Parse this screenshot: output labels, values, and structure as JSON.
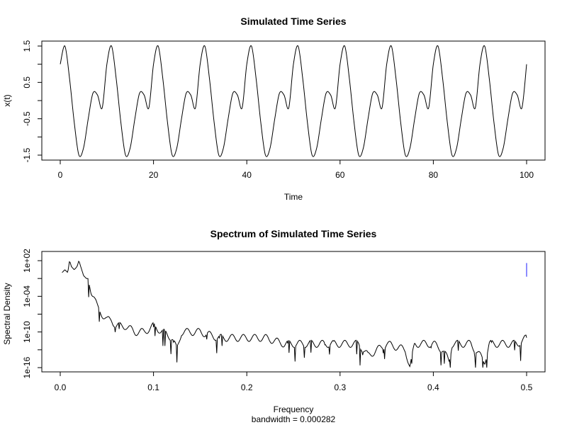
{
  "chart_data": [
    {
      "type": "line",
      "title": "Simulated Time Series",
      "xlabel": "Time",
      "ylabel": "x(t)",
      "xlim": [
        0,
        100
      ],
      "ylim": [
        -1.5,
        1.5
      ],
      "x_ticks": [
        0,
        20,
        40,
        60,
        80,
        100
      ],
      "x_tick_labels": [
        "0",
        "20",
        "40",
        "60",
        "80",
        "100"
      ],
      "y_ticks": [
        1.5,
        0.5,
        -0.5,
        -1.5
      ],
      "y_tick_labels": [
        "1.5",
        "0.5",
        "-0.5",
        "-1.5"
      ],
      "y_minor_ticks": [
        1.0,
        0.0,
        -1.0
      ],
      "series": [
        {
          "period": 10,
          "x": [
            0,
            1,
            2,
            3,
            4,
            5,
            6,
            7,
            8,
            9,
            10,
            11,
            12,
            13,
            14,
            15,
            16,
            17,
            18,
            19,
            20,
            21,
            22,
            23,
            24,
            25,
            26,
            27,
            28,
            29,
            30,
            31,
            32,
            33,
            34,
            35,
            36,
            37,
            38,
            39,
            40,
            41,
            42,
            43,
            44,
            45,
            46,
            47,
            48,
            49,
            50,
            51,
            52,
            53,
            54,
            55,
            56,
            57,
            58,
            59,
            60,
            61,
            62,
            63,
            64,
            65,
            66,
            67,
            68,
            69,
            70,
            71,
            72,
            73,
            74,
            75,
            76,
            77,
            78,
            79,
            80,
            81,
            82,
            83,
            84,
            85,
            86,
            87,
            88,
            89,
            90,
            91,
            92,
            93,
            94,
            95,
            96,
            97,
            98,
            99,
            100
          ],
          "y": [
            1.0,
            1.5,
            0.6,
            -0.6,
            -1.5,
            -1.3,
            -0.5,
            0.2,
            0.15,
            -0.2,
            1.0,
            1.5,
            0.6,
            -0.6,
            -1.5,
            -1.3,
            -0.5,
            0.2,
            0.15,
            -0.2,
            1.0,
            1.5,
            0.6,
            -0.6,
            -1.5,
            -1.3,
            -0.5,
            0.2,
            0.15,
            -0.2,
            1.0,
            1.5,
            0.6,
            -0.6,
            -1.5,
            -1.3,
            -0.5,
            0.2,
            0.15,
            -0.2,
            1.0,
            1.5,
            0.6,
            -0.6,
            -1.5,
            -1.3,
            -0.5,
            0.2,
            0.15,
            -0.2,
            1.0,
            1.5,
            0.6,
            -0.6,
            -1.5,
            -1.3,
            -0.5,
            0.2,
            0.15,
            -0.2,
            1.0,
            1.5,
            0.6,
            -0.6,
            -1.5,
            -1.3,
            -0.5,
            0.2,
            0.15,
            -0.2,
            1.0,
            1.5,
            0.6,
            -0.6,
            -1.5,
            -1.3,
            -0.5,
            0.2,
            0.15,
            -0.2,
            1.0,
            1.5,
            0.6,
            -0.6,
            -1.5,
            -1.3,
            -0.5,
            0.2,
            0.15,
            -0.2,
            1.0,
            1.5,
            0.6,
            -0.6,
            -1.5,
            -1.3,
            -0.5,
            0.2,
            0.15,
            -0.2,
            1.0
          ]
        }
      ],
      "line_color": "#000000"
    },
    {
      "type": "line",
      "title": "Spectrum of Simulated Time Series",
      "xlabel": "Frequency",
      "subtitle": "bandwidth = 0.000282",
      "ylabel": "Spectral Density",
      "y_scale": "log",
      "xlim": [
        0,
        0.5
      ],
      "ylim": [
        1e-16,
        100.0
      ],
      "x_ticks": [
        0.0,
        0.1,
        0.2,
        0.3,
        0.4,
        0.5
      ],
      "x_tick_labels": [
        "0.0",
        "0.1",
        "0.2",
        "0.3",
        "0.4",
        "0.5"
      ],
      "y_ticks": [
        100.0,
        0.0001,
        1e-10,
        1e-16
      ],
      "y_tick_labels": [
        "1e+02",
        "1e-04",
        "1e-10",
        "1e-16"
      ],
      "y_minor_ticks": [
        0.1,
        1e-07,
        1e-13
      ],
      "series": [
        {
          "x": [
            0.002,
            0.005,
            0.008,
            0.01,
            0.012,
            0.015,
            0.018,
            0.02,
            0.022,
            0.025,
            0.028,
            0.03,
            0.033,
            0.036,
            0.04,
            0.045,
            0.05,
            0.055,
            0.06,
            0.07,
            0.08,
            0.09,
            0.1,
            0.11,
            0.12,
            0.125,
            0.13,
            0.15,
            0.17,
            0.19,
            0.2,
            0.22,
            0.24,
            0.26,
            0.28,
            0.3,
            0.32,
            0.33,
            0.35,
            0.37,
            0.375,
            0.38,
            0.4,
            0.41,
            0.417,
            0.42,
            0.44,
            0.455,
            0.46,
            0.48,
            0.49,
            0.5
          ],
          "y": [
            1.0,
            3.0,
            1.0,
            100.0,
            10.0,
            3.0,
            10.0,
            100.0,
            10.0,
            0.3,
            0.1,
            0.1,
            0.001,
            0.0001,
            1e-06,
            1e-07,
            1e-08,
            1e-08,
            1e-09,
            1e-09,
            1e-10,
            1e-10,
            1e-09,
            1e-10,
            1e-11,
            1e-13,
            1e-10,
            1e-10,
            1e-11,
            1e-11,
            1e-11,
            1e-11,
            1e-12,
            1e-12,
            1e-12,
            1e-12,
            1e-12,
            1e-14,
            1e-12,
            1e-13,
            1e-16,
            1e-12,
            1e-12,
            1e-13,
            1e-15,
            1e-12,
            1e-12,
            1e-15,
            1e-12,
            1e-12,
            1e-12,
            1e-11
          ]
        }
      ],
      "reference_bar": {
        "x": 0.5,
        "y_range": [
          0.2,
          40.0
        ],
        "color": "#6666ff"
      },
      "line_color": "#000000"
    }
  ]
}
